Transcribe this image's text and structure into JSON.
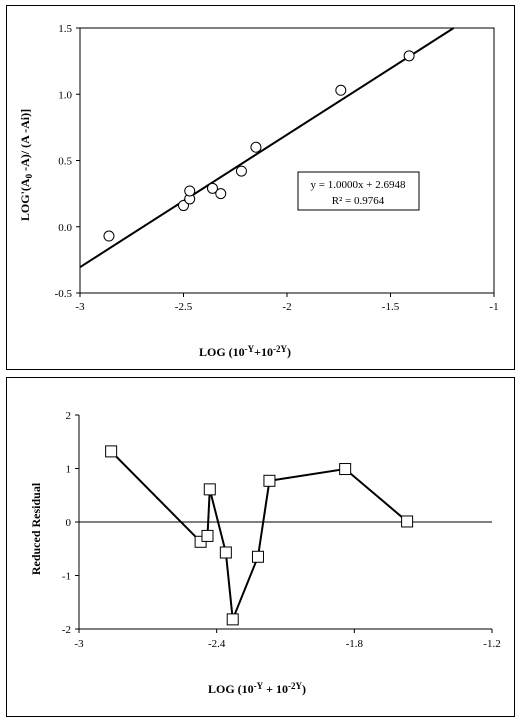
{
  "chart_data": [
    {
      "type": "scatter",
      "xlabel": "LOG (10^-Y + 10^-2Y)",
      "ylabel": "LOG'(A0 -A)/ (A -Ai)]",
      "xlim": [
        -3,
        -1
      ],
      "ylim": [
        -0.5,
        1.5
      ],
      "xticks": [
        "-3",
        "-2.5",
        "-2",
        "-1.5",
        "-1"
      ],
      "yticks": [
        "1.5",
        "1.0",
        "0.5",
        "0.0",
        "-0.5"
      ],
      "points": [
        {
          "x": -2.86,
          "y": -0.07
        },
        {
          "x": -2.5,
          "y": 0.16
        },
        {
          "x": -2.47,
          "y": 0.21
        },
        {
          "x": -2.47,
          "y": 0.27
        },
        {
          "x": -2.36,
          "y": 0.29
        },
        {
          "x": -2.32,
          "y": 0.25
        },
        {
          "x": -2.22,
          "y": 0.42
        },
        {
          "x": -2.15,
          "y": 0.6
        },
        {
          "x": -1.74,
          "y": 1.03
        },
        {
          "x": -1.41,
          "y": 1.29
        }
      ],
      "fit": {
        "slope": 1.0,
        "intercept": 2.6948
      },
      "equation": "y = 1.0000x + 2.6948",
      "r2": "R² = 0.9764"
    },
    {
      "type": "line",
      "xlabel": "LOG (10^-Y + 10^-2Y)",
      "ylabel": "Reduced Residual",
      "xlim": [
        -3,
        -1.2
      ],
      "ylim": [
        -2,
        2
      ],
      "xticks": [
        "-3",
        "-2.4",
        "-1.8",
        "-1.2"
      ],
      "yticks": [
        "2",
        "1",
        "0",
        "-1",
        "-2"
      ],
      "points": [
        {
          "x": -2.86,
          "y": 1.32
        },
        {
          "x": -2.47,
          "y": -0.37
        },
        {
          "x": -2.44,
          "y": -0.26
        },
        {
          "x": -2.43,
          "y": 0.61
        },
        {
          "x": -2.36,
          "y": -0.57
        },
        {
          "x": -2.33,
          "y": -1.82
        },
        {
          "x": -2.22,
          "y": -0.65
        },
        {
          "x": -2.17,
          "y": 0.77
        },
        {
          "x": -1.84,
          "y": 0.99
        },
        {
          "x": -1.57,
          "y": 0.01
        }
      ]
    }
  ]
}
